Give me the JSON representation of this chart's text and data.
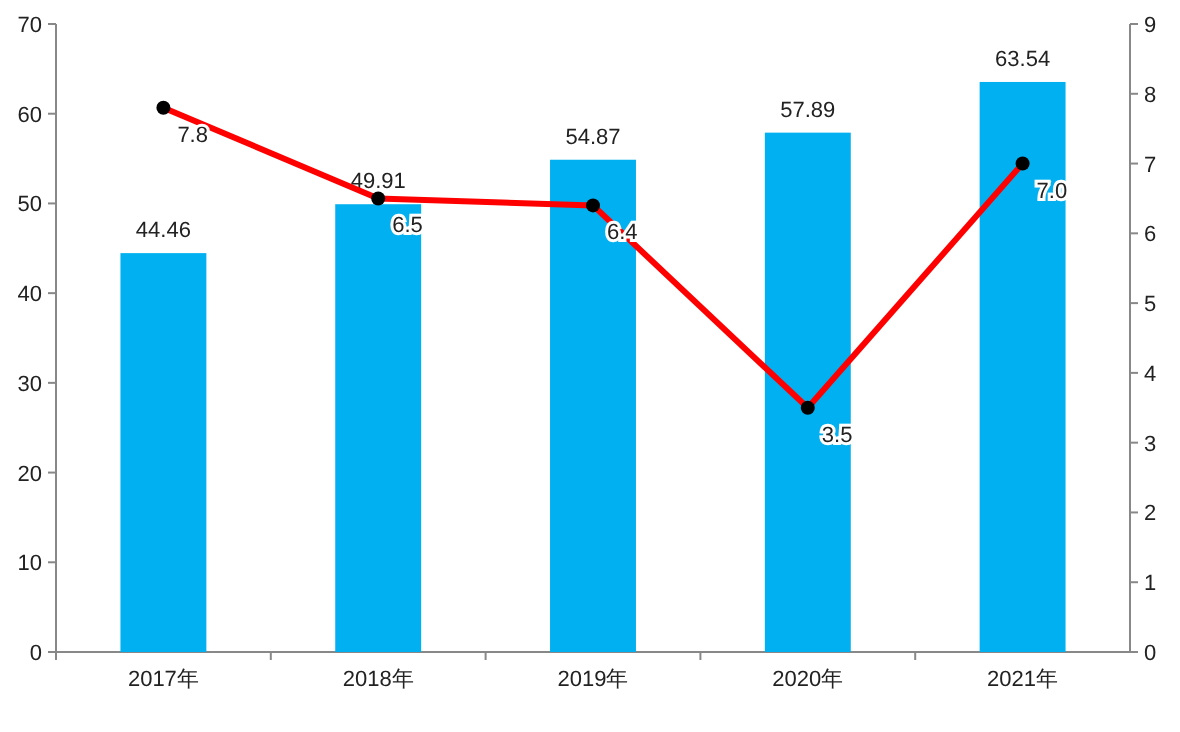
{
  "chart_data": {
    "type": "bar",
    "categories": [
      "2017年",
      "2018年",
      "2019年",
      "2020年",
      "2021年"
    ],
    "series": [
      {
        "color": "#00b0f0",
        "values": [
          44.46,
          49.91,
          54.87,
          57.89,
          63.54
        ],
        "value_labels": [
          "44.46",
          "49.91",
          "54.87",
          "57.89",
          "63.54"
        ]
      },
      {
        "type": "line",
        "axis": "y2",
        "color": "#ff0000",
        "values": [
          7.8,
          6.5,
          6.4,
          3.5,
          7.0
        ],
        "value_labels": [
          "7.8",
          "6.5",
          "6.4",
          "3.5",
          "7.0"
        ]
      }
    ],
    "ylim": [
      0,
      70
    ],
    "yticks": [
      0,
      10,
      20,
      30,
      40,
      50,
      60,
      70
    ],
    "y2lim": [
      0,
      9
    ],
    "y2ticks": [
      0,
      1,
      2,
      3,
      4,
      5,
      6,
      7,
      8,
      9
    ],
    "marker": "circle",
    "line_style": "solid",
    "grid": false
  }
}
